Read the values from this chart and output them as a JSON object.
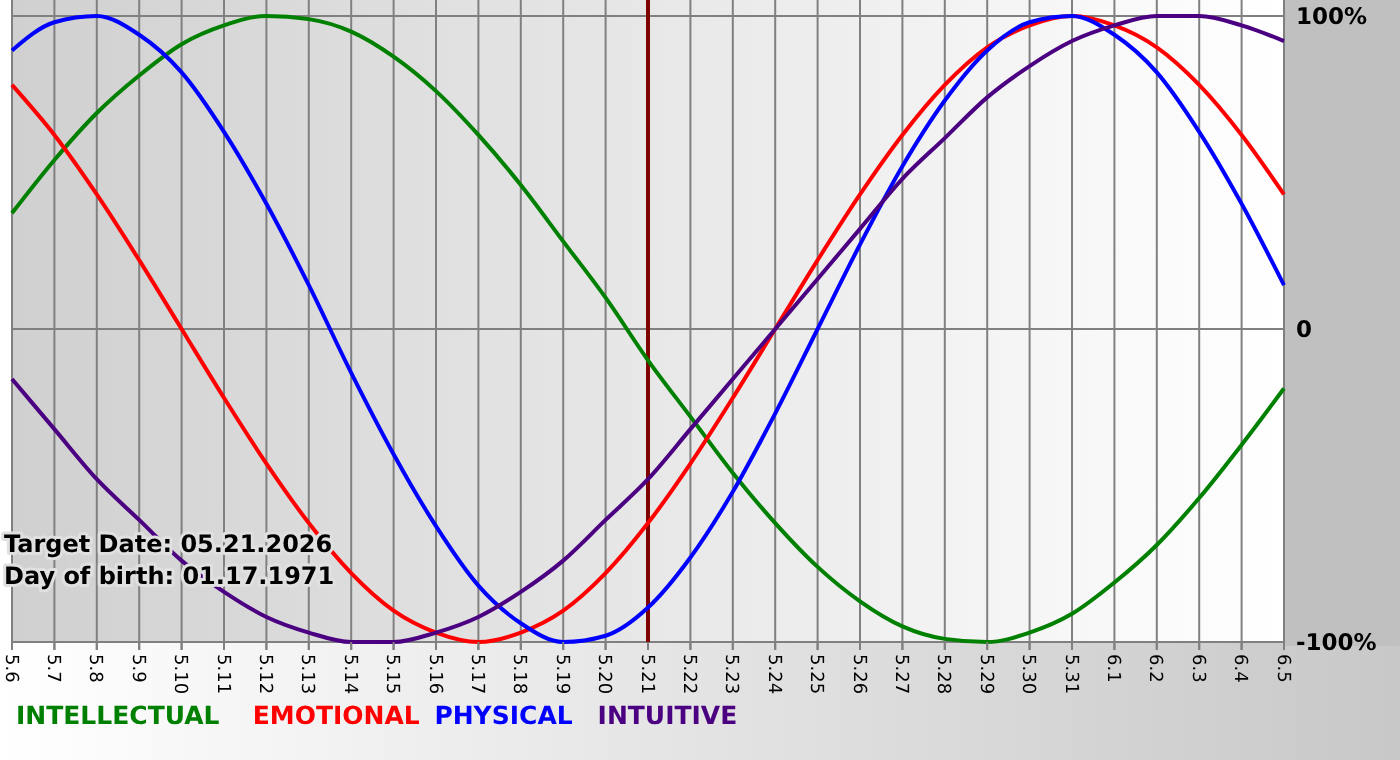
{
  "chart_data": {
    "type": "line",
    "categories": [
      "5.6",
      "5.7",
      "5.8",
      "5.9",
      "5.10",
      "5.11",
      "5.12",
      "5.13",
      "5.14",
      "5.15",
      "5.16",
      "5.17",
      "5.18",
      "5.19",
      "5.20",
      "5.21",
      "5.22",
      "5.23",
      "5.24",
      "5.25",
      "5.26",
      "5.27",
      "5.28",
      "5.29",
      "5.30",
      "5.31",
      "6.1",
      "6.2",
      "6.3",
      "6.4",
      "6.5"
    ],
    "series": [
      {
        "name": "INTELLECTUAL",
        "color": "#008000",
        "values": [
          37,
          54,
          69,
          81,
          91,
          97,
          100,
          99,
          95,
          87,
          76,
          62,
          46,
          28,
          10,
          -10,
          -28,
          -46,
          -62,
          -76,
          -87,
          -95,
          -99,
          -100,
          -97,
          -91,
          -81,
          -69,
          -54,
          -37,
          -19
        ]
      },
      {
        "name": "EMOTIONAL",
        "color": "#ff0000",
        "values": [
          78,
          62,
          43,
          22,
          0,
          -22,
          -43,
          -62,
          -78,
          -90,
          -97,
          -100,
          -97,
          -90,
          -78,
          -62,
          -43,
          -22,
          0,
          22,
          43,
          62,
          78,
          90,
          97,
          100,
          97,
          90,
          78,
          62,
          43
        ]
      },
      {
        "name": "PHYSICAL",
        "color": "#0000ff",
        "values": [
          89,
          98,
          100,
          94,
          82,
          63,
          40,
          14,
          -14,
          -40,
          -63,
          -82,
          -94,
          -100,
          -98,
          -89,
          -73,
          -52,
          -27,
          0,
          27,
          52,
          73,
          89,
          98,
          100,
          94,
          82,
          63,
          40,
          14
        ]
      },
      {
        "name": "INTUITIVE",
        "color": "#4b0082",
        "values": [
          -16,
          -32,
          -48,
          -61,
          -74,
          -84,
          -92,
          -97,
          -100,
          -100,
          -97,
          -92,
          -84,
          -74,
          -61,
          -48,
          -32,
          -16,
          0,
          16,
          32,
          48,
          61,
          74,
          84,
          92,
          97,
          100,
          100,
          97,
          92
        ]
      }
    ],
    "ylim": [
      -100,
      100
    ],
    "yticks": [
      {
        "value": 100,
        "label": "100%"
      },
      0,
      {
        "value": -100,
        "label": "-100%"
      }
    ],
    "ref_lines": [
      {
        "axis": "x",
        "value": "5.21",
        "color": "#800000"
      }
    ],
    "annotations": [
      "Target Date: 05.21.2026",
      "Day of birth: 01.17.1971"
    ],
    "grid": true,
    "legend": "bottom left",
    "marker": "none",
    "line_style": "solid"
  }
}
